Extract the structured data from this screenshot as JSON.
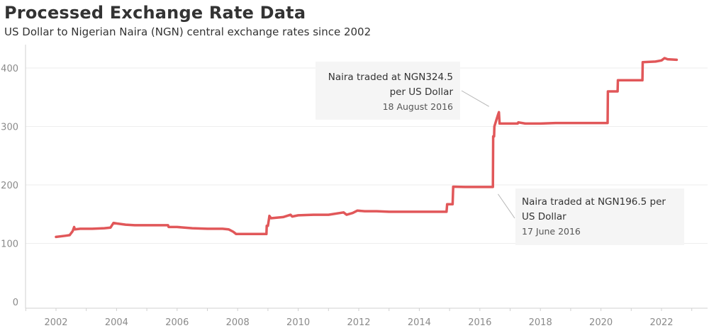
{
  "title": "Processed Exchange Rate Data",
  "subtitle": "US Dollar to Nigerian Naira (NGN) central exchange rates since 2002",
  "colors": {
    "line": "#e15759",
    "grid": "#eeeeee",
    "axis": "#d0d0d0",
    "annotation_bg": "#f5f5f5"
  },
  "annotations": [
    {
      "text": "Naira traded at NGN324.5 per US Dollar",
      "date": "18 August 2016",
      "x": 2016.63,
      "y": 324.5
    },
    {
      "text": "Naira traded at NGN196.5 per US Dollar",
      "date": "17 June 2016",
      "x": 2016.46,
      "y": 196.5
    }
  ],
  "chart_data": {
    "type": "line",
    "title": "Processed Exchange Rate Data",
    "subtitle": "US Dollar to Nigerian Naira (NGN) central exchange rates since 2002",
    "xlabel": "",
    "ylabel": "",
    "x_ticks": [
      "2002",
      "2004",
      "2006",
      "2008",
      "2010",
      "2012",
      "2014",
      "2016",
      "2018",
      "2020",
      "2022"
    ],
    "y_ticks": [
      "0",
      "100",
      "200",
      "300",
      "400"
    ],
    "xlim": [
      2001.0,
      2023.5
    ],
    "ylim": [
      0,
      420
    ],
    "grid": true,
    "series": [
      {
        "color": "#e15759",
        "points": [
          [
            2002.0,
            111
          ],
          [
            2002.3,
            113
          ],
          [
            2002.45,
            114
          ],
          [
            2002.55,
            121
          ],
          [
            2002.6,
            128
          ],
          [
            2002.62,
            124
          ],
          [
            2002.8,
            125
          ],
          [
            2003.2,
            125
          ],
          [
            2003.6,
            126
          ],
          [
            2003.8,
            127
          ],
          [
            2003.9,
            135
          ],
          [
            2004.0,
            134
          ],
          [
            2004.3,
            132
          ],
          [
            2004.6,
            131
          ],
          [
            2005.0,
            131
          ],
          [
            2005.5,
            131
          ],
          [
            2005.7,
            131
          ],
          [
            2005.72,
            128
          ],
          [
            2006.0,
            128
          ],
          [
            2006.5,
            126
          ],
          [
            2007.0,
            125
          ],
          [
            2007.5,
            125
          ],
          [
            2007.7,
            124
          ],
          [
            2007.85,
            120
          ],
          [
            2007.95,
            116
          ],
          [
            2008.3,
            116
          ],
          [
            2008.65,
            116
          ],
          [
            2008.95,
            116
          ],
          [
            2008.96,
            130
          ],
          [
            2009.0,
            130
          ],
          [
            2009.05,
            147
          ],
          [
            2009.1,
            143
          ],
          [
            2009.5,
            145
          ],
          [
            2009.75,
            149
          ],
          [
            2009.8,
            146
          ],
          [
            2010.0,
            148
          ],
          [
            2010.5,
            149
          ],
          [
            2011.0,
            149
          ],
          [
            2011.5,
            153
          ],
          [
            2011.6,
            149
          ],
          [
            2011.8,
            152
          ],
          [
            2011.95,
            156
          ],
          [
            2012.2,
            155
          ],
          [
            2012.6,
            155
          ],
          [
            2013.0,
            154
          ],
          [
            2013.5,
            154
          ],
          [
            2014.0,
            154
          ],
          [
            2014.5,
            154
          ],
          [
            2014.9,
            154
          ],
          [
            2014.92,
            167
          ],
          [
            2015.1,
            167
          ],
          [
            2015.12,
            197
          ],
          [
            2015.5,
            196.5
          ],
          [
            2016.0,
            196.5
          ],
          [
            2016.43,
            196.5
          ],
          [
            2016.44,
            283
          ],
          [
            2016.47,
            283
          ],
          [
            2016.48,
            300
          ],
          [
            2016.55,
            312
          ],
          [
            2016.6,
            320
          ],
          [
            2016.63,
            324.5
          ],
          [
            2016.65,
            305
          ],
          [
            2017.0,
            305
          ],
          [
            2017.25,
            305
          ],
          [
            2017.27,
            307
          ],
          [
            2017.5,
            305
          ],
          [
            2018.0,
            305
          ],
          [
            2018.5,
            306
          ],
          [
            2019.0,
            306
          ],
          [
            2019.5,
            306
          ],
          [
            2020.0,
            306
          ],
          [
            2020.22,
            306
          ],
          [
            2020.23,
            360
          ],
          [
            2020.55,
            360
          ],
          [
            2020.56,
            379
          ],
          [
            2021.0,
            379
          ],
          [
            2021.37,
            379
          ],
          [
            2021.38,
            410
          ],
          [
            2021.8,
            411
          ],
          [
            2022.0,
            413
          ],
          [
            2022.1,
            417
          ],
          [
            2022.2,
            415
          ],
          [
            2022.5,
            414
          ]
        ]
      }
    ]
  }
}
